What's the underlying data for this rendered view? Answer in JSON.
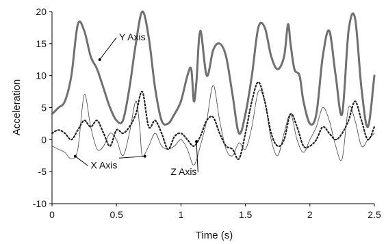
{
  "chart_data": {
    "type": "line",
    "title": "",
    "xlabel": "Time (s)",
    "ylabel": "Acceleration",
    "xlim": [
      0,
      2.5
    ],
    "ylim": [
      -10,
      20
    ],
    "xticks": [
      0,
      0.5,
      1,
      1.5,
      2,
      2.5
    ],
    "xtick_labels": [
      "0",
      "0.5",
      "1",
      "1.5",
      "2",
      "2.5"
    ],
    "yticks": [
      -10,
      -5,
      0,
      5,
      10,
      15,
      20
    ],
    "ytick_labels": [
      "-10",
      "-5",
      "0",
      "5",
      "10",
      "15",
      "20"
    ],
    "grid": false,
    "legend": "none",
    "series": [
      {
        "name": "Y Axis",
        "style": "thick-solid",
        "color": "#707070",
        "x": [
          0.0,
          0.05,
          0.1,
          0.15,
          0.2,
          0.25,
          0.3,
          0.35,
          0.4,
          0.45,
          0.5,
          0.55,
          0.6,
          0.65,
          0.7,
          0.75,
          0.8,
          0.85,
          0.9,
          0.95,
          1.0,
          1.05,
          1.08,
          1.1,
          1.12,
          1.15,
          1.2,
          1.25,
          1.3,
          1.35,
          1.4,
          1.45,
          1.5,
          1.55,
          1.6,
          1.65,
          1.7,
          1.75,
          1.8,
          1.83,
          1.85,
          1.88,
          1.92,
          1.95,
          2.0,
          2.05,
          2.1,
          2.15,
          2.2,
          2.25,
          2.3,
          2.35,
          2.4,
          2.45,
          2.5
        ],
        "y": [
          4,
          5,
          6,
          10,
          18,
          17,
          13,
          11,
          8,
          5,
          3,
          3,
          8,
          15,
          20,
          16,
          8,
          3,
          2.5,
          4,
          6,
          10,
          11,
          6,
          9,
          17,
          10,
          14,
          15,
          13,
          7,
          1,
          4,
          10,
          17.5,
          17.5,
          13,
          11,
          13,
          18,
          15,
          11,
          10,
          6,
          2.5,
          4,
          13,
          17,
          10,
          4,
          17,
          19,
          8,
          2,
          10
        ]
      },
      {
        "name": "X Axis",
        "style": "thin-solid",
        "color": "#555555",
        "x": [
          0.0,
          0.05,
          0.1,
          0.15,
          0.2,
          0.25,
          0.3,
          0.35,
          0.4,
          0.45,
          0.5,
          0.55,
          0.6,
          0.65,
          0.68,
          0.7,
          0.75,
          0.8,
          0.85,
          0.9,
          0.95,
          1.0,
          1.05,
          1.1,
          1.15,
          1.2,
          1.25,
          1.3,
          1.35,
          1.4,
          1.45,
          1.5,
          1.55,
          1.6,
          1.65,
          1.7,
          1.75,
          1.8,
          1.85,
          1.9,
          1.95,
          2.0,
          2.05,
          2.1,
          2.15,
          2.2,
          2.25,
          2.3,
          2.35,
          2.4,
          2.45,
          2.5
        ],
        "y": [
          -1,
          -1.5,
          -2,
          -3,
          -1.5,
          7,
          2,
          -1.5,
          -1,
          1,
          0,
          -2.5,
          1,
          6,
          2,
          -2.5,
          -1,
          1,
          -1,
          -1.5,
          -1,
          0,
          -1.5,
          -4,
          -1,
          3,
          8.5,
          3,
          -1.5,
          -2.5,
          -0.5,
          -1.5,
          2,
          7.5,
          6,
          0,
          -2.5,
          1,
          4,
          0,
          -2,
          0,
          2,
          5,
          3,
          -1,
          -3,
          5,
          3,
          -1,
          0,
          1
        ]
      },
      {
        "name": "Z Axis",
        "style": "dotted",
        "color": "#222222",
        "x": [
          0.0,
          0.05,
          0.1,
          0.15,
          0.2,
          0.25,
          0.3,
          0.35,
          0.4,
          0.45,
          0.5,
          0.55,
          0.6,
          0.65,
          0.7,
          0.75,
          0.8,
          0.85,
          0.9,
          0.95,
          1.0,
          1.05,
          1.1,
          1.15,
          1.2,
          1.25,
          1.3,
          1.35,
          1.4,
          1.45,
          1.5,
          1.55,
          1.6,
          1.65,
          1.7,
          1.75,
          1.8,
          1.85,
          1.9,
          1.95,
          2.0,
          2.05,
          2.1,
          2.15,
          2.2,
          2.25,
          2.3,
          2.35,
          2.4,
          2.45,
          2.5
        ],
        "y": [
          1,
          1.5,
          1,
          0,
          1.5,
          3,
          2,
          3,
          1,
          -1,
          1.5,
          1,
          2,
          4,
          7.5,
          2,
          3,
          1,
          -1.5,
          0.5,
          1,
          0,
          -1,
          0.5,
          3,
          3.5,
          1,
          -1,
          -1.5,
          -3,
          1,
          6,
          9,
          6,
          1,
          -1,
          0,
          4,
          2,
          -1,
          -1,
          0,
          2,
          1,
          0,
          1,
          3,
          6,
          3,
          0,
          2
        ]
      }
    ],
    "annotations": [
      {
        "text": "Y Axis",
        "x": 0.52,
        "y": 15.5,
        "arrow_to_x": 0.37,
        "arrow_to_y": 12.5
      },
      {
        "text": "X Axis",
        "x": 0.3,
        "y": -4.5,
        "arrow_to_x": 0.18,
        "arrow_to_y": -2.6
      },
      {
        "text": "Z Axis",
        "x": 0.92,
        "y": -5.5,
        "arrow_to_x": 1.12,
        "arrow_to_y": -0.3
      },
      {
        "text": "",
        "x": 0.52,
        "y": -3.3,
        "arrow_to_x": 0.72,
        "arrow_to_y": -2.6
      }
    ]
  }
}
